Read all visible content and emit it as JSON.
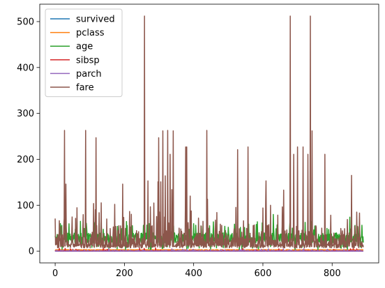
{
  "chart_data": {
    "type": "line",
    "title": "",
    "xlabel": "",
    "ylabel": "",
    "xlim": [
      -44.5,
      934.5
    ],
    "ylim": [
      -25.6,
      537.9
    ],
    "xticks": [
      0,
      200,
      400,
      600,
      800
    ],
    "yticks": [
      0,
      100,
      200,
      300,
      400,
      500
    ],
    "n_points": 891,
    "grid": false,
    "legend_position": "upper left",
    "series": [
      {
        "name": "survived",
        "color": "#1f77b4",
        "range": [
          0,
          1
        ]
      },
      {
        "name": "pclass",
        "color": "#ff7f0e",
        "range": [
          1,
          3
        ]
      },
      {
        "name": "age",
        "color": "#2ca02c",
        "range": [
          0.42,
          80
        ]
      },
      {
        "name": "sibsp",
        "color": "#d62728",
        "range": [
          0,
          8
        ]
      },
      {
        "name": "parch",
        "color": "#9467bd",
        "range": [
          0,
          6
        ]
      },
      {
        "name": "fare",
        "color": "#8c564b",
        "range": [
          0,
          512.33
        ],
        "peaks": [
          [
            0,
            71
          ],
          [
            27,
            263
          ],
          [
            31,
            146
          ],
          [
            88,
            263
          ],
          [
            118,
            247
          ],
          [
            195,
            146
          ],
          [
            258,
            512
          ],
          [
            268,
            153
          ],
          [
            297,
            151
          ],
          [
            299,
            247
          ],
          [
            305,
            151
          ],
          [
            311,
            262
          ],
          [
            318,
            164
          ],
          [
            325,
            263
          ],
          [
            332,
            211
          ],
          [
            337,
            134
          ],
          [
            341,
            262
          ],
          [
            377,
            227
          ],
          [
            380,
            227
          ],
          [
            390,
            120
          ],
          [
            438,
            263
          ],
          [
            527,
            221
          ],
          [
            557,
            227
          ],
          [
            609,
            153
          ],
          [
            660,
            133
          ],
          [
            679,
            512
          ],
          [
            689,
            211
          ],
          [
            700,
            227
          ],
          [
            716,
            227
          ],
          [
            730,
            211
          ],
          [
            737,
            512
          ],
          [
            742,
            262
          ],
          [
            779,
            211
          ],
          [
            856,
            165
          ],
          [
            879,
            83
          ]
        ]
      }
    ]
  }
}
